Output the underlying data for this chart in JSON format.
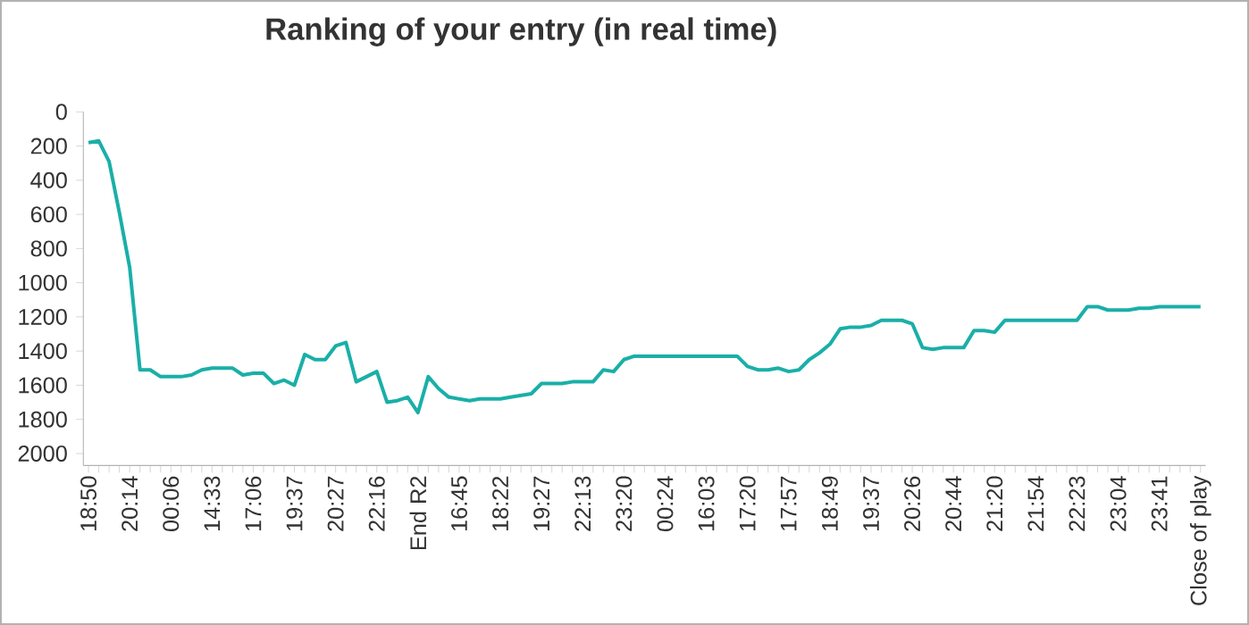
{
  "chart_data": {
    "type": "line",
    "title": "Ranking of your entry (in real time)",
    "categories": [
      "18:50",
      null,
      null,
      null,
      "20:14",
      null,
      null,
      null,
      "00:06",
      null,
      null,
      null,
      "14:33",
      null,
      null,
      null,
      "17:06",
      null,
      null,
      null,
      "19:37",
      null,
      null,
      null,
      "20:27",
      null,
      null,
      null,
      "22:16",
      null,
      null,
      null,
      "End R2",
      null,
      null,
      null,
      "16:45",
      null,
      null,
      null,
      "18:22",
      null,
      null,
      null,
      "19:27",
      null,
      null,
      null,
      "22:13",
      null,
      null,
      null,
      "23:20",
      null,
      null,
      null,
      "00:24",
      null,
      null,
      null,
      "16:03",
      null,
      null,
      null,
      "17:20",
      null,
      null,
      null,
      "17:57",
      null,
      null,
      null,
      "18:49",
      null,
      null,
      null,
      "19:37",
      null,
      null,
      null,
      "20:26",
      null,
      null,
      null,
      "20:44",
      null,
      null,
      null,
      "21:20",
      null,
      null,
      null,
      "21:54",
      null,
      null,
      null,
      "22:23",
      null,
      null,
      null,
      "23:04",
      null,
      null,
      null,
      "23:41",
      null,
      null,
      null,
      "Close of play"
    ],
    "values": [
      180,
      170,
      290,
      590,
      910,
      1510,
      1510,
      1550,
      1550,
      1550,
      1540,
      1510,
      1500,
      1500,
      1500,
      1540,
      1530,
      1530,
      1590,
      1570,
      1600,
      1420,
      1450,
      1450,
      1370,
      1350,
      1580,
      1550,
      1520,
      1700,
      1690,
      1670,
      1760,
      1550,
      1620,
      1670,
      1680,
      1690,
      1680,
      1680,
      1680,
      1670,
      1660,
      1650,
      1590,
      1590,
      1590,
      1580,
      1580,
      1580,
      1510,
      1520,
      1450,
      1430,
      1430,
      1430,
      1430,
      1430,
      1430,
      1430,
      1430,
      1430,
      1430,
      1430,
      1490,
      1510,
      1510,
      1500,
      1520,
      1510,
      1450,
      1410,
      1360,
      1270,
      1260,
      1260,
      1250,
      1220,
      1220,
      1220,
      1240,
      1380,
      1390,
      1380,
      1380,
      1380,
      1280,
      1280,
      1290,
      1220,
      1220,
      1220,
      1220,
      1220,
      1220,
      1220,
      1220,
      1140,
      1140,
      1160,
      1160,
      1160,
      1150,
      1150,
      1140,
      1140,
      1140,
      1140,
      1140
    ],
    "color": "#1aafa8",
    "ylim": [
      2070,
      0
    ],
    "yticks": [
      0,
      200,
      400,
      600,
      800,
      1000,
      1200,
      1400,
      1600,
      1800,
      2000
    ]
  }
}
